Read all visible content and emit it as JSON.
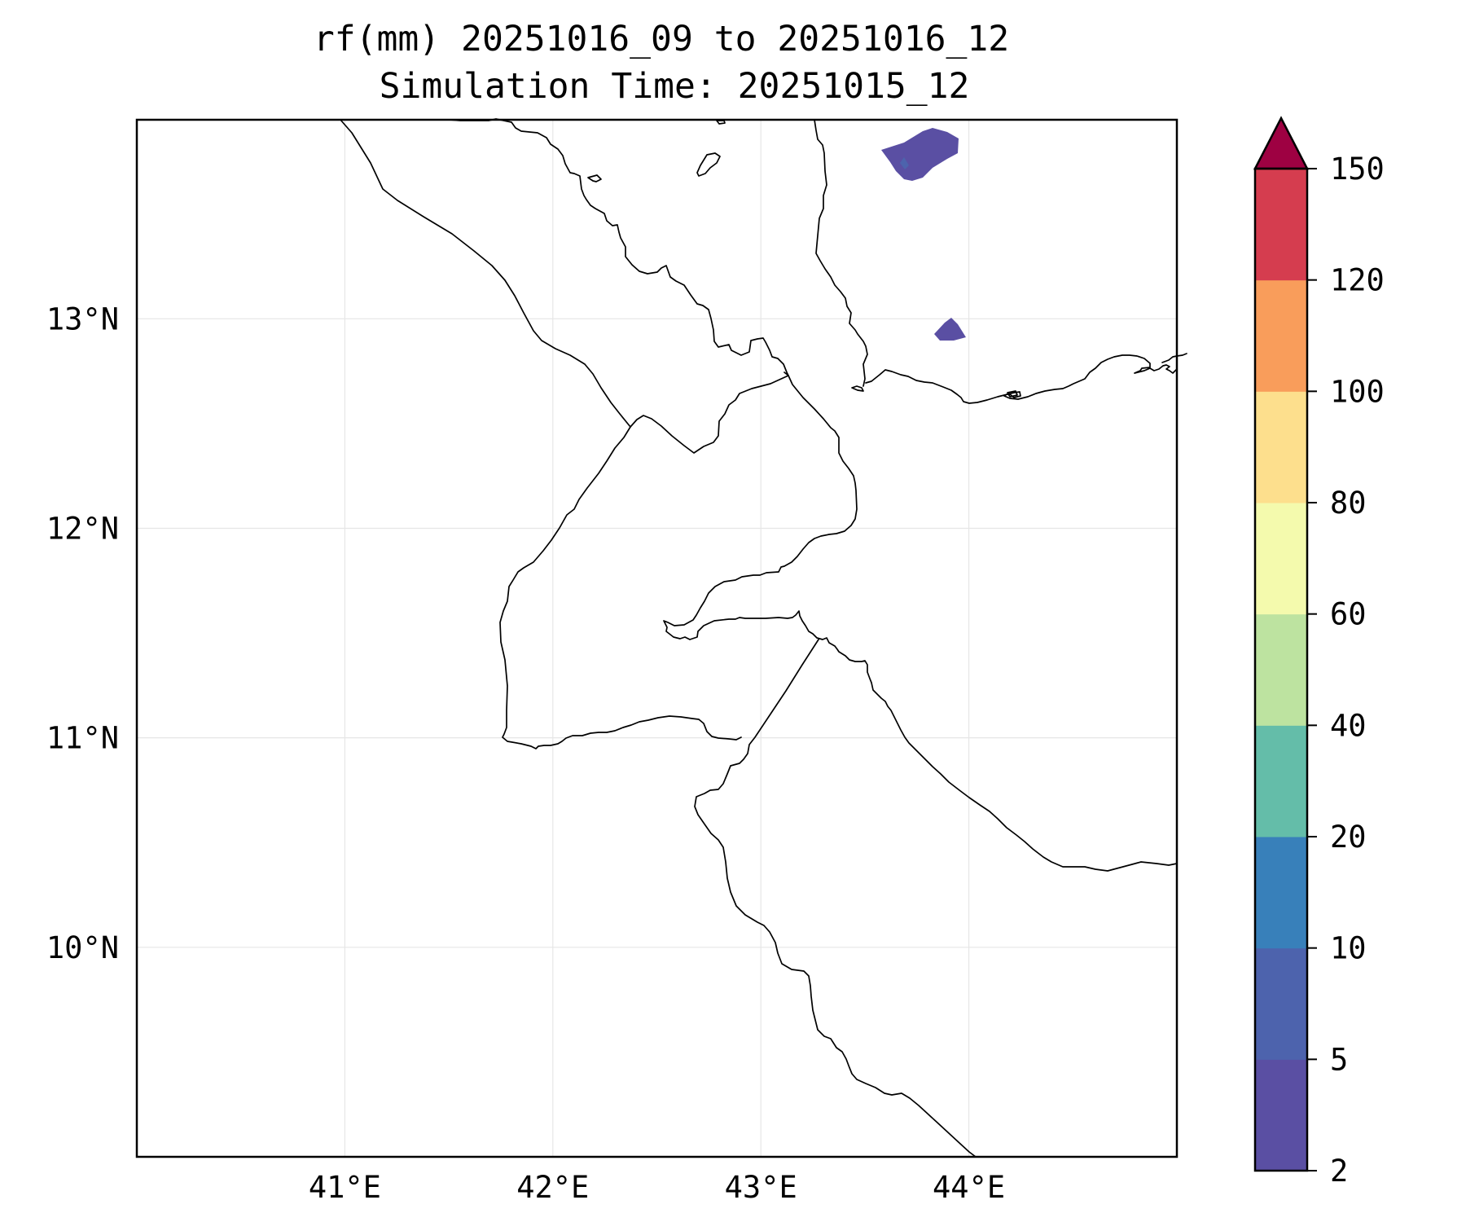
{
  "title": {
    "line1": "rf(mm) 20251016_09 to 20251016_12",
    "line2": "Simulation Time: 20251015_12"
  },
  "map": {
    "lon_range": [
      40.0,
      45.0
    ],
    "lat_range": [
      9.0,
      13.95
    ],
    "x_ticks": [
      {
        "value": 41,
        "label": "41°E"
      },
      {
        "value": 42,
        "label": "42°E"
      },
      {
        "value": 43,
        "label": "43°E"
      },
      {
        "value": 44,
        "label": "44°E"
      }
    ],
    "y_ticks": [
      {
        "value": 13,
        "label": "13°N"
      },
      {
        "value": 12,
        "label": "12°N"
      },
      {
        "value": 11,
        "label": "11°N"
      },
      {
        "value": 10,
        "label": "10°N"
      }
    ],
    "grid": true
  },
  "colorbar": {
    "boundaries": [
      2,
      5,
      10,
      20,
      40,
      60,
      80,
      100,
      120,
      150
    ],
    "colors": [
      "#5a4fa3",
      "#4d63ad",
      "#3880ba",
      "#64bda9",
      "#bde3a0",
      "#f4faad",
      "#fddf8d",
      "#f99d5b",
      "#d53d4f"
    ],
    "extend_color": "#9e0142",
    "tick_labels": [
      "2",
      "5",
      "10",
      "20",
      "40",
      "60",
      "80",
      "100",
      "120",
      "150"
    ]
  },
  "precip_areas": [
    {
      "name": "rain-cell-north",
      "value_class": "2-5",
      "color": "#5a4fa3"
    },
    {
      "name": "rain-cell-south",
      "value_class": "2-5",
      "color": "#5a4fa3"
    }
  ]
}
